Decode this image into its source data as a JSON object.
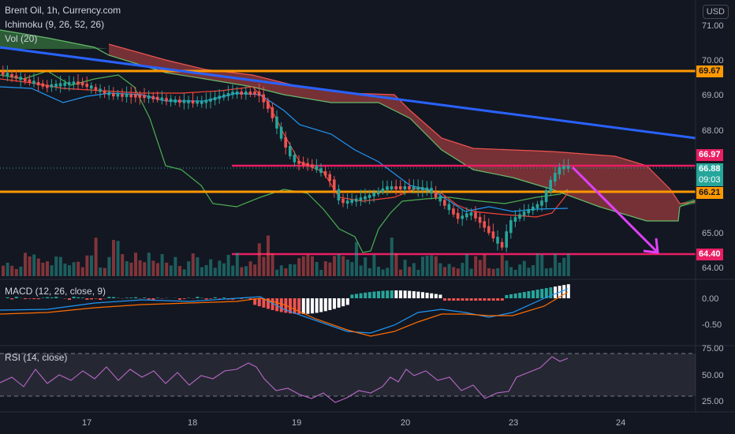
{
  "header": {
    "symbol": "Brent Oil, 1h, Currency.com",
    "currency_button": "USD"
  },
  "indicators": {
    "ichimoku": "Ichimoku (9, 26, 52, 26)",
    "volume": "Vol (20)",
    "macd": "MACD (12, 26, close, 9)",
    "rsi": "RSI (14, close)"
  },
  "price_axis": {
    "ticks": [
      "71.00",
      "70.00",
      "69.00",
      "68.00",
      "65.00",
      "64.00"
    ],
    "levels": {
      "resistance_top": "69.67",
      "level_high": "66.97",
      "last_price": "66.88",
      "countdown": "09:03",
      "support_mid": "66.21",
      "support_low": "64.40"
    }
  },
  "macd_axis": {
    "ticks": [
      "0.00",
      "-0.50"
    ]
  },
  "rsi_axis": {
    "ticks": [
      "75.00",
      "50.00",
      "25.00"
    ]
  },
  "time_axis": {
    "ticks": [
      "17",
      "18",
      "19",
      "20",
      "23",
      "24"
    ]
  },
  "colors": {
    "background": "#131722",
    "orange_line": "#ff9800",
    "pink_line": "#e91e63",
    "trend_blue": "#2962ff",
    "arrow": "#e040fb",
    "up": "#26a69a",
    "down": "#ef5350"
  }
}
